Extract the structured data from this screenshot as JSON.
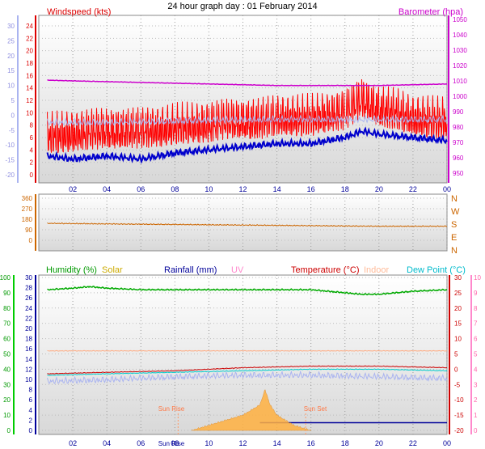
{
  "title": "24 hour graph day : 01 February 2014",
  "x_tick_labels": [
    "02",
    "04",
    "06",
    "08",
    "10",
    "12",
    "14",
    "16",
    "18",
    "20",
    "22",
    "00"
  ],
  "sun_ticks": "Sun Rise",
  "panel1": {
    "left_label": "Windspeed (kts)",
    "right_label": "Barometer (hpa)",
    "left_axis_kts": [
      "24",
      "22",
      "20",
      "18",
      "16",
      "14",
      "12",
      "10",
      "8",
      "6",
      "4",
      "2",
      "0"
    ],
    "far_left_axis": [
      "30",
      "25",
      "20",
      "15",
      "10",
      "5",
      "0",
      "-5",
      "-10",
      "-15",
      "-20"
    ],
    "right_axis_hpa": [
      "1050",
      "1040",
      "1030",
      "1020",
      "1010",
      "1000",
      "990",
      "980",
      "970",
      "960",
      "950"
    ]
  },
  "panel2": {
    "left_axis": [
      "360",
      "270",
      "180",
      "90",
      "0"
    ],
    "right_axis": [
      "N",
      "W",
      "S",
      "E",
      "N"
    ]
  },
  "panel3": {
    "labels": {
      "humidity": "Humidity (%)",
      "solar": "Solar",
      "rainfall": "Rainfall (mm)",
      "uv": "UV",
      "temperature": "Temperature (°C)",
      "indoor": "Indoor",
      "dew_point": "Dew Point (°C)"
    },
    "humidity_axis": [
      "100",
      "90",
      "80",
      "70",
      "60",
      "50",
      "40",
      "30",
      "20",
      "10",
      "0"
    ],
    "rain_axis": [
      "30",
      "28",
      "26",
      "24",
      "22",
      "20",
      "18",
      "16",
      "14",
      "12",
      "10",
      "8",
      "6",
      "4",
      "2",
      "0"
    ],
    "temp_axis": [
      "30",
      "25",
      "20",
      "15",
      "10",
      "5",
      "0",
      "-5",
      "-10",
      "-15",
      "-20"
    ],
    "uv_axis": [
      "10",
      "9",
      "8",
      "7",
      "6",
      "5",
      "4",
      "3",
      "2",
      "1",
      "0"
    ],
    "sun_rise": "Sun Rise",
    "sun_set": "Sun Set"
  },
  "chart_data": [
    {
      "type": "line",
      "title": "24 hour graph day : 01 February 2014",
      "x_unit": "hour",
      "series": [
        {
          "name": "Windspeed (kts)",
          "axis": "kts",
          "color": "#ff0000",
          "x": [
            0.5,
            2,
            4,
            6,
            8,
            10,
            11,
            12,
            13,
            14,
            16,
            18,
            18.5,
            19,
            20,
            21,
            22,
            24
          ],
          "y": [
            6,
            6.5,
            7,
            7,
            7.5,
            8,
            8.5,
            8.5,
            8.5,
            9,
            9,
            10,
            11,
            12,
            10.5,
            10,
            9,
            8.5
          ]
        },
        {
          "name": "Barometer (hpa)",
          "axis": "hpa",
          "color": "#cc00cc",
          "x": [
            0.5,
            2,
            4,
            6,
            8,
            10,
            12,
            14,
            16,
            18,
            20,
            22,
            24
          ],
          "y": [
            1010.5,
            1010,
            1009.5,
            1009,
            1008.5,
            1008,
            1007.5,
            1007,
            1007,
            1007,
            1007,
            1007.5,
            1008
          ]
        },
        {
          "name": "Average windspeed",
          "axis": "kts",
          "color": "#0000cc",
          "x": [
            0.5,
            2,
            4,
            6,
            8,
            10,
            12,
            14,
            16,
            18,
            19,
            20,
            22,
            24
          ],
          "y": [
            3,
            2.5,
            3,
            2.5,
            3.5,
            4,
            4.5,
            5,
            5,
            6,
            7,
            6.5,
            6,
            5.5
          ]
        },
        {
          "name": "Wind chill",
          "axis": "far_left",
          "color": "#aab4f0",
          "x": [
            0.5,
            4,
            8,
            12,
            16,
            20,
            24
          ],
          "y": [
            -2.5,
            -2.5,
            -2,
            -1.5,
            -1.5,
            -1.5,
            -1.5
          ]
        }
      ],
      "ylim_kts": [
        0,
        25
      ],
      "ylim_hpa": [
        945,
        1052
      ]
    },
    {
      "type": "line",
      "series": [
        {
          "name": "Wind direction",
          "color": "#cc6600",
          "x": [
            0.5,
            4,
            8,
            12,
            16,
            20,
            24
          ],
          "y": [
            145,
            140,
            135,
            130,
            125,
            120,
            120
          ]
        }
      ],
      "ylim": [
        0,
        360
      ]
    },
    {
      "type": "line",
      "series": [
        {
          "name": "Humidity (%)",
          "axis": "humidity",
          "color": "#00aa00",
          "x": [
            0.5,
            2,
            3,
            4,
            6,
            8,
            12,
            16,
            18,
            19,
            20,
            21,
            22,
            24
          ],
          "y": [
            92,
            93,
            94,
            93,
            92,
            92,
            92,
            92,
            90,
            89,
            89,
            90,
            91,
            92
          ]
        },
        {
          "name": "Temperature (°C)",
          "axis": "temp",
          "color": "#cc0000",
          "x": [
            0.5,
            4,
            8,
            12,
            16,
            20,
            24
          ],
          "y": [
            -1.5,
            -1,
            -0.5,
            0.5,
            1,
            1,
            0.5
          ]
        },
        {
          "name": "Dew Point (°C)",
          "axis": "temp",
          "color": "#00cccc",
          "x": [
            0.5,
            4,
            8,
            12,
            16,
            20,
            24
          ],
          "y": [
            -2,
            -1.5,
            -1,
            -0.5,
            0,
            0,
            -0.5
          ]
        },
        {
          "name": "Apparent temperature",
          "axis": "temp",
          "color": "#aab4f0",
          "x": [
            0.5,
            4,
            8,
            12,
            16,
            20,
            24
          ],
          "y": [
            -4,
            -3.5,
            -2.5,
            -2,
            -2,
            -2.5,
            -3
          ]
        },
        {
          "name": "Indoor",
          "axis": "temp",
          "color": "#ffaa80",
          "x": [
            0.5,
            24
          ],
          "y": [
            6,
            6
          ]
        },
        {
          "name": "Rainfall (mm)",
          "axis": "rain",
          "color": "#000099",
          "x": [
            13,
            14,
            24
          ],
          "y": [
            1.5,
            1.5,
            1.5
          ]
        },
        {
          "name": "Solar",
          "type": "area",
          "color": "#ffb040",
          "x": [
            9,
            10,
            11,
            12,
            13,
            13.3,
            13.6,
            14,
            15,
            16
          ],
          "y": [
            0,
            1,
            2,
            3,
            5,
            8,
            5,
            3,
            1,
            0
          ]
        }
      ],
      "ylim_humidity": [
        0,
        100
      ],
      "ylim_temp": [
        -20,
        30
      ],
      "ylim_rain": [
        0,
        30
      ]
    }
  ]
}
